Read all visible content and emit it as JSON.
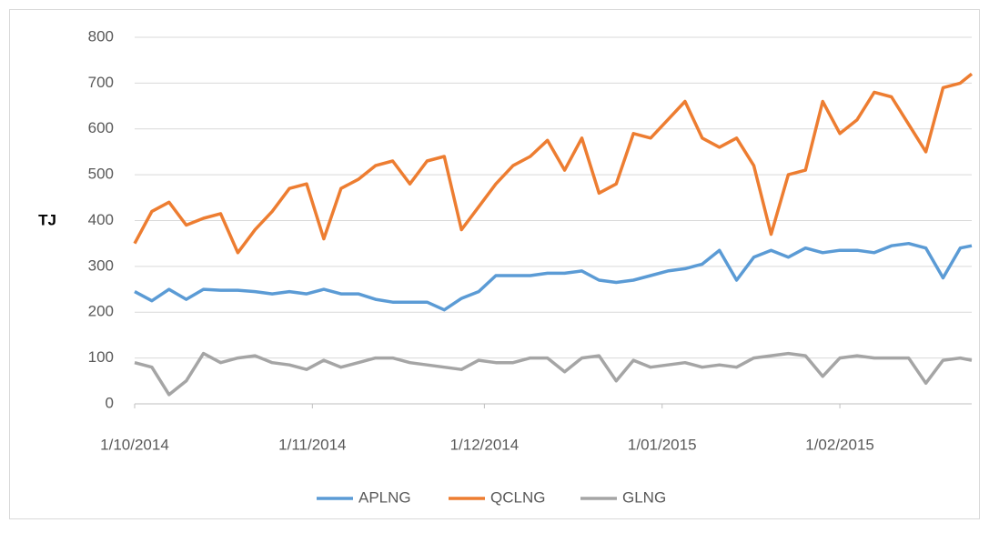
{
  "chart_data": {
    "type": "line",
    "y_label": "TJ",
    "x": [
      "1/10/2014",
      "4/10/2014",
      "7/10/2014",
      "10/10/2014",
      "13/10/2014",
      "16/10/2014",
      "19/10/2014",
      "22/10/2014",
      "25/10/2014",
      "28/10/2014",
      "31/10/2014",
      "3/11/2014",
      "6/11/2014",
      "9/11/2014",
      "12/11/2014",
      "15/11/2014",
      "18/11/2014",
      "21/11/2014",
      "24/11/2014",
      "27/11/2014",
      "30/11/2014",
      "3/12/2014",
      "6/12/2014",
      "9/12/2014",
      "12/12/2014",
      "15/12/2014",
      "18/12/2014",
      "21/12/2014",
      "24/12/2014",
      "27/12/2014",
      "30/12/2014",
      "2/01/2015",
      "5/01/2015",
      "8/01/2015",
      "11/01/2015",
      "14/01/2015",
      "17/01/2015",
      "20/01/2015",
      "23/01/2015",
      "26/01/2015",
      "29/01/2015",
      "1/02/2015",
      "4/02/2015",
      "7/02/2015",
      "10/02/2015",
      "13/02/2015",
      "16/02/2015",
      "19/02/2015",
      "22/02/2015",
      "24/02/2015"
    ],
    "series": [
      {
        "name": "APLNG",
        "color": "#5b9bd5",
        "values": [
          245,
          225,
          250,
          228,
          250,
          248,
          248,
          245,
          240,
          245,
          240,
          250,
          240,
          240,
          228,
          222,
          222,
          222,
          205,
          230,
          245,
          280,
          280,
          280,
          285,
          285,
          290,
          270,
          265,
          270,
          280,
          290,
          295,
          305,
          335,
          270,
          320,
          335,
          320,
          340,
          330,
          335,
          335,
          330,
          345,
          350,
          340,
          275,
          340,
          345
        ]
      },
      {
        "name": "QCLNG",
        "color": "#ed7d31",
        "values": [
          350,
          420,
          440,
          390,
          405,
          415,
          330,
          380,
          420,
          470,
          480,
          360,
          470,
          490,
          520,
          530,
          480,
          530,
          540,
          380,
          430,
          480,
          520,
          540,
          575,
          510,
          580,
          460,
          480,
          590,
          580,
          620,
          660,
          580,
          560,
          580,
          520,
          370,
          500,
          510,
          660,
          590,
          620,
          680,
          670,
          610,
          550,
          690,
          700,
          720
        ]
      },
      {
        "name": "GLNG",
        "color": "#a5a5a5",
        "values": [
          90,
          80,
          20,
          50,
          110,
          90,
          100,
          105,
          90,
          85,
          75,
          95,
          80,
          90,
          100,
          100,
          90,
          85,
          80,
          75,
          95,
          90,
          90,
          100,
          100,
          70,
          100,
          105,
          50,
          95,
          80,
          85,
          90,
          80,
          85,
          80,
          100,
          105,
          110,
          105,
          60,
          100,
          105,
          100,
          100,
          100,
          45,
          95,
          100,
          95
        ]
      }
    ],
    "xlim": [
      "1/10/2014",
      "24/02/2015"
    ],
    "xticks": [
      "1/10/2014",
      "1/11/2014",
      "1/12/2014",
      "1/01/2015",
      "1/02/2015"
    ],
    "ylim": [
      0,
      800
    ],
    "yticks": [
      0,
      100,
      200,
      300,
      400,
      500,
      600,
      700,
      800
    ],
    "grid": true,
    "legend": "bottom"
  }
}
